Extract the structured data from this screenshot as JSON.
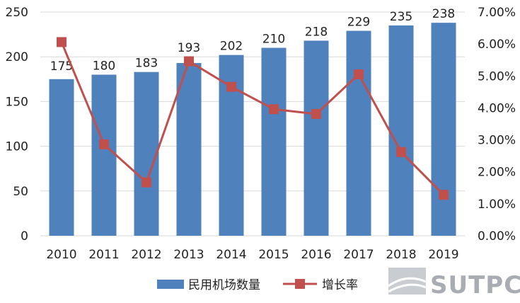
{
  "chart_data": {
    "type": "bar",
    "categories": [
      "2010",
      "2011",
      "2012",
      "2013",
      "2014",
      "2015",
      "2016",
      "2017",
      "2018",
      "2019"
    ],
    "series": [
      {
        "name": "民用机场数量",
        "type": "bar",
        "axis": "left",
        "values": [
          175,
          180,
          183,
          193,
          202,
          210,
          218,
          229,
          235,
          238
        ]
      },
      {
        "name": "增长率",
        "type": "line",
        "axis": "right",
        "values": [
          6.06,
          2.86,
          1.67,
          5.46,
          4.66,
          3.96,
          3.81,
          5.05,
          2.62,
          1.28
        ]
      }
    ],
    "ylim": [
      0,
      250
    ],
    "yticks": [
      "0",
      "50",
      "100",
      "150",
      "200",
      "250"
    ],
    "y2lim": [
      0,
      7
    ],
    "y2ticks": [
      "0.00%",
      "1.00%",
      "2.00%",
      "3.00%",
      "4.00%",
      "5.00%",
      "6.00%",
      "7.00%"
    ],
    "grid": true,
    "legend_position": "bottom",
    "colors": {
      "bar": "#4f81bd",
      "line": "#c0504d",
      "grid": "#d9d9d9"
    }
  },
  "logo": {
    "text": "SUTPC"
  }
}
